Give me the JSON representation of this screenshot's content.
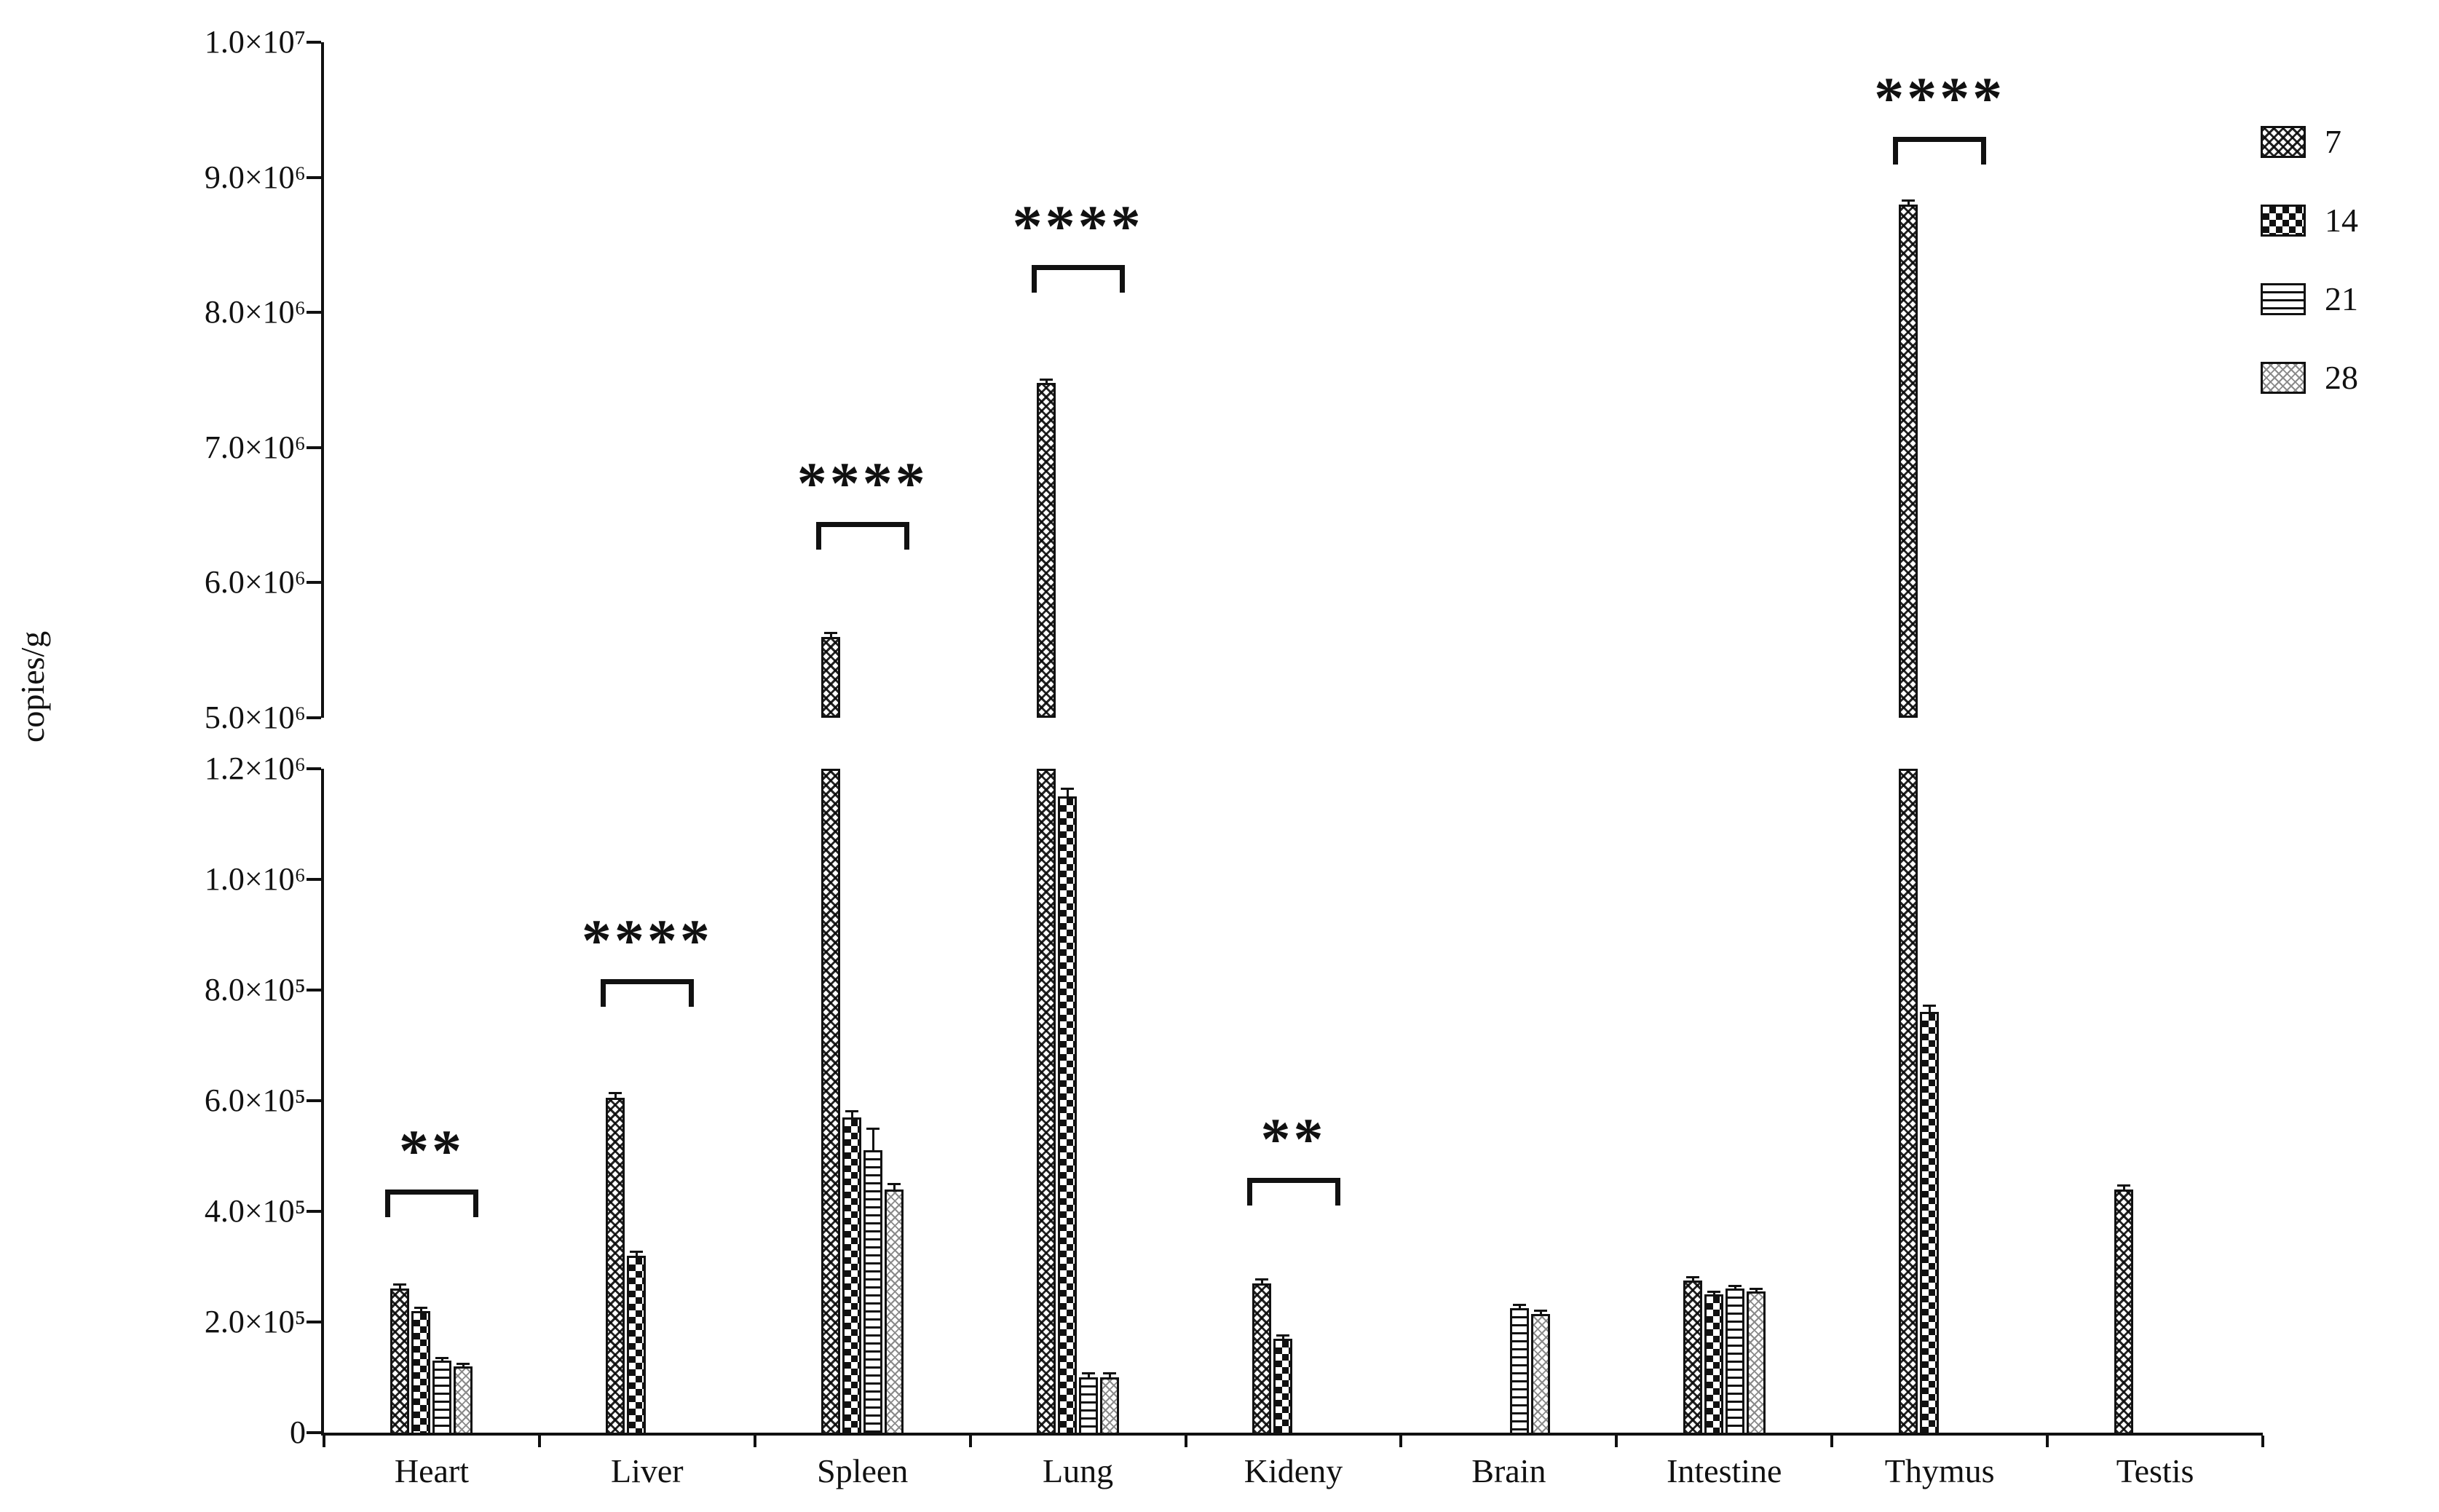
{
  "figure": {
    "y_axis_title": "copies/g"
  },
  "legend": {
    "items": [
      {
        "label": "7",
        "pattern": "checker-diagonal"
      },
      {
        "label": "14",
        "pattern": "checkerboard"
      },
      {
        "label": "21",
        "pattern": "horizontal-lines"
      },
      {
        "label": "28",
        "pattern": "wave"
      }
    ]
  },
  "chart_data": {
    "type": "bar",
    "title": "",
    "xlabel": "",
    "ylabel": "copies/g",
    "categories": [
      "Heart",
      "Liver",
      "Spleen",
      "Lung",
      "Kideny",
      "Brain",
      "Intestine",
      "Thymus",
      "Testis"
    ],
    "series": [
      {
        "name": "7",
        "pattern": "checker-diagonal",
        "values": [
          260000,
          605000,
          5600000,
          7480000,
          270000,
          0,
          275000,
          8800000,
          440000
        ],
        "errors": [
          8000,
          10000,
          30000,
          25000,
          7000,
          0,
          6000,
          30000,
          8000
        ]
      },
      {
        "name": "14",
        "pattern": "checkerboard",
        "values": [
          220000,
          320000,
          570000,
          1150000,
          170000,
          0,
          250000,
          760000,
          0
        ],
        "errors": [
          6000,
          8000,
          12000,
          15000,
          6000,
          0,
          5000,
          12000,
          0
        ]
      },
      {
        "name": "21",
        "pattern": "horizontal-lines",
        "values": [
          130000,
          0,
          510000,
          100000,
          0,
          225000,
          260000,
          0,
          0
        ],
        "errors": [
          5000,
          0,
          40000,
          8000,
          0,
          6000,
          6000,
          0,
          0
        ]
      },
      {
        "name": "28",
        "pattern": "wave",
        "values": [
          120000,
          0,
          440000,
          100000,
          0,
          215000,
          255000,
          0,
          0
        ],
        "errors": [
          5000,
          0,
          10000,
          8000,
          0,
          6000,
          5000,
          0,
          0
        ]
      }
    ],
    "y_axis": {
      "broken": true,
      "lower": {
        "min": 0,
        "max": 1200000,
        "ticks": [
          {
            "label": "0",
            "value": 0
          },
          {
            "label": "2.0×10⁵",
            "value": 200000
          },
          {
            "label": "4.0×10⁵",
            "value": 400000
          },
          {
            "label": "6.0×10⁵",
            "value": 600000
          },
          {
            "label": "8.0×10⁵",
            "value": 800000
          },
          {
            "label": "1.0×10⁶",
            "value": 1000000
          },
          {
            "label": "1.2×10⁶",
            "value": 1200000
          }
        ]
      },
      "upper": {
        "min": 5000000,
        "max": 10000000,
        "ticks": [
          {
            "label": "5.0×10⁶",
            "value": 5000000
          },
          {
            "label": "6.0×10⁶",
            "value": 6000000
          },
          {
            "label": "7.0×10⁶",
            "value": 7000000
          },
          {
            "label": "8.0×10⁶",
            "value": 8000000
          },
          {
            "label": "9.0×10⁶",
            "value": 9000000
          },
          {
            "label": "1.0×10⁷",
            "value": 10000000
          }
        ]
      }
    },
    "significance": [
      {
        "category": "Heart",
        "stars": "**",
        "y": 440000
      },
      {
        "category": "Liver",
        "stars": "****",
        "y": 820000
      },
      {
        "category": "Spleen",
        "stars": "****",
        "y": 6450000
      },
      {
        "category": "Lung",
        "stars": "****",
        "y": 8350000
      },
      {
        "category": "Kideny",
        "stars": "**",
        "y": 460000
      },
      {
        "category": "Thymus",
        "stars": "****",
        "y": 9300000
      }
    ]
  }
}
